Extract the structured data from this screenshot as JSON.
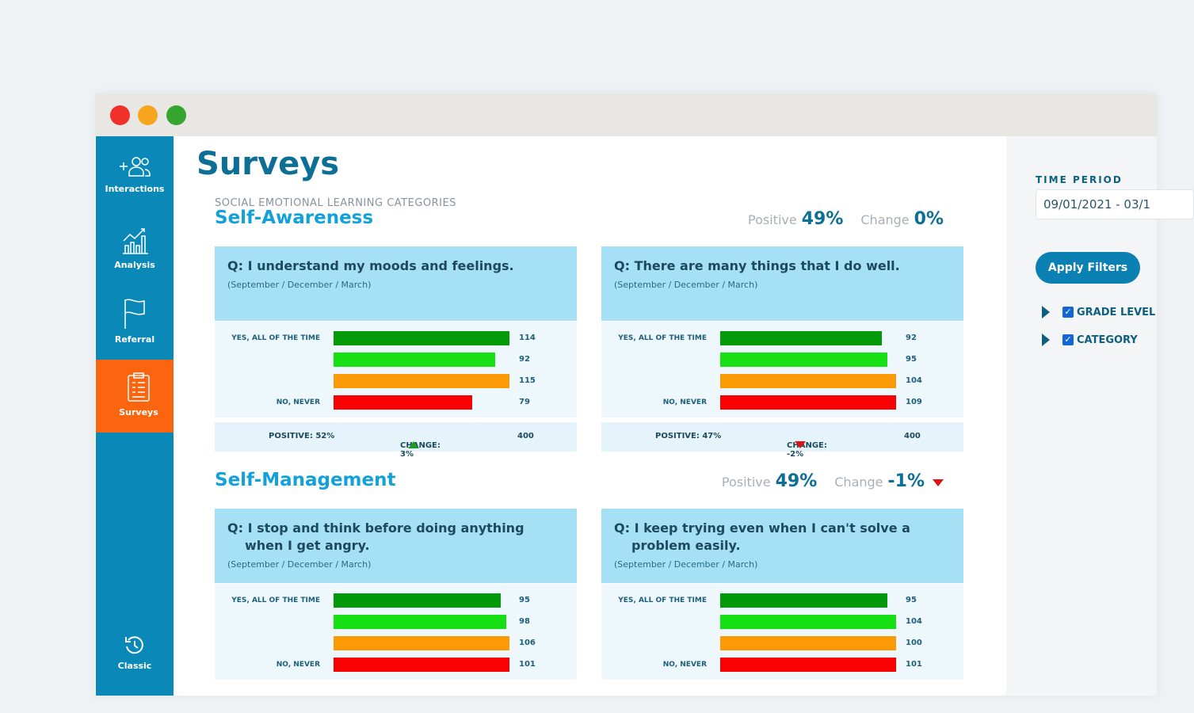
{
  "sidebar": {
    "items": [
      {
        "label": "Interactions"
      },
      {
        "label": "Analysis"
      },
      {
        "label": "Referral"
      },
      {
        "label": "Surveys"
      },
      {
        "label": "Classic"
      }
    ]
  },
  "page_title": "Surveys",
  "category_heading": "SOCIAL EMOTIONAL LEARNING CATEGORIES",
  "labels": {
    "positive": "Positive",
    "change": "Change",
    "top": "YES, ALL OF THE TIME",
    "bottom": "NO, NEVER"
  },
  "colors": {
    "bars": [
      "#029a08",
      "#16e014",
      "#fb9a05",
      "#f90003"
    ],
    "accent": "#0a89b9",
    "active": "#fb650f"
  },
  "sections": [
    {
      "title": "Self-Awareness",
      "positive": "49%",
      "change": "0%",
      "change_dir": "none",
      "cards": [
        {
          "question": "Q: I understand my moods and feelings.",
          "period": "(September / December / March)",
          "values": [
            114,
            92,
            115,
            79
          ],
          "positive": "POSITIVE: 52%",
          "change": "CHANGE: 3%",
          "change_dir": "up",
          "total": "400"
        },
        {
          "question": "Q: There are many things that I do well.",
          "period": "(September / December / March)",
          "values": [
            92,
            95,
            104,
            109
          ],
          "positive": "POSITIVE: 47%",
          "change": "CHANGE: -2%",
          "change_dir": "down",
          "total": "400"
        }
      ]
    },
    {
      "title": "Self-Management",
      "positive": "49%",
      "change": "-1%",
      "change_dir": "down",
      "cards": [
        {
          "question": "Q: I stop and think before doing anything when I get angry.",
          "period": "(September / December / March)",
          "values": [
            95,
            98,
            106,
            101
          ]
        },
        {
          "question": "Q: I keep trying even when I can't solve a problem easily.",
          "period": "(September / December / March)",
          "values": [
            95,
            104,
            100,
            101
          ]
        }
      ]
    }
  ],
  "filters": {
    "time_period_label": "TIME PERIOD",
    "time_period_value": "09/01/2021 - 03/1",
    "apply_label": "Apply Filters",
    "groups": [
      {
        "label": "GRADE LEVEL",
        "checked": true
      },
      {
        "label": "CATEGORY",
        "checked": true
      }
    ]
  },
  "bar_scale_max": 100
}
